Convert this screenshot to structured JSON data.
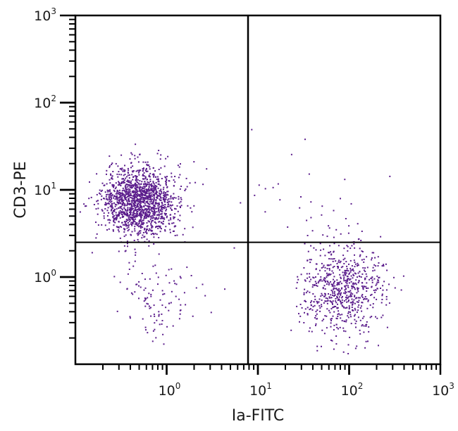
{
  "chart_data": {
    "type": "scatter",
    "title": "",
    "xlabel": "Ia-FITC",
    "ylabel": "CD3-PE",
    "xscale": "log",
    "yscale": "log",
    "xlim": [
      0.1,
      1000
    ],
    "ylim": [
      0.1,
      1000
    ],
    "x_ticks": [
      {
        "base": "10",
        "exp": "0",
        "value": 1
      },
      {
        "base": "10",
        "exp": "1",
        "value": 10
      },
      {
        "base": "10",
        "exp": "2",
        "value": 100
      },
      {
        "base": "10",
        "exp": "3",
        "value": 1000
      }
    ],
    "y_ticks": [
      {
        "base": "10",
        "exp": "0",
        "value": 1
      },
      {
        "base": "10",
        "exp": "1",
        "value": 10
      },
      {
        "base": "10",
        "exp": "2",
        "value": 100
      },
      {
        "base": "10",
        "exp": "3",
        "value": 1000
      }
    ],
    "grid": false,
    "legend": null,
    "point_color": "#5b1d8c",
    "quadrant_gates": {
      "x": 7.8,
      "y": 2.5
    },
    "clusters": [
      {
        "name": "CD3+ Ia- (upper-left)",
        "n": 1500,
        "center_x": 0.5,
        "center_y": 7.5,
        "log_sd_x": 0.2,
        "log_sd_y": 0.2
      },
      {
        "name": "CD3- Ia+ (lower-right)",
        "n": 700,
        "center_x": 85,
        "center_y": 0.75,
        "log_sd_x": 0.22,
        "log_sd_y": 0.27
      },
      {
        "name": "CD3- Ia- (lower-left)",
        "n": 110,
        "center_x": 0.75,
        "center_y": 0.6,
        "log_sd_x": 0.22,
        "log_sd_y": 0.22
      },
      {
        "name": "CD3+ Ia+ (upper-right sparse)",
        "n": 30,
        "center_x": 40,
        "center_y": 8,
        "log_sd_x": 0.4,
        "log_sd_y": 0.3
      }
    ]
  },
  "axes": {
    "x_title": "Ia-FITC",
    "y_title": "CD3-PE"
  }
}
